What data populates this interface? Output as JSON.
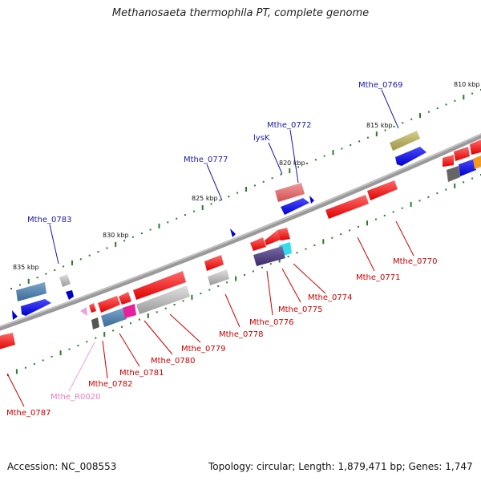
{
  "title": "Methanosaeta thermophila PT, complete genome",
  "footer": {
    "accession": "Accession: NC_008553",
    "summary": "Topology: circular; Length: 1,879,471 bp; Genes: 1,747"
  },
  "scale_labels": [
    "810 kbp",
    "815 kbp",
    "820 kbp",
    "825 kbp",
    "830 kbp",
    "835 kbp"
  ],
  "gene_labels_top": [
    "Mthe_0769",
    "Mthe_0772",
    "lysK",
    "Mthe_0777",
    "Mthe_0783"
  ],
  "gene_labels_bottom": [
    "Mthe_0770",
    "Mthe_0771",
    "Mthe_0774",
    "Mthe_0775",
    "Mthe_0776",
    "Mthe_0778",
    "Mthe_0779",
    "Mthe_0780",
    "Mthe_0781",
    "Mthe_0782",
    "Mthe_R0020",
    "Mthe_0787"
  ],
  "colors": {
    "label_blue": "#1a1aa6",
    "label_red": "#cc0000",
    "label_pink": "#e87cc0",
    "backbone": "#808080",
    "tick_green": "#2a7a2a"
  }
}
